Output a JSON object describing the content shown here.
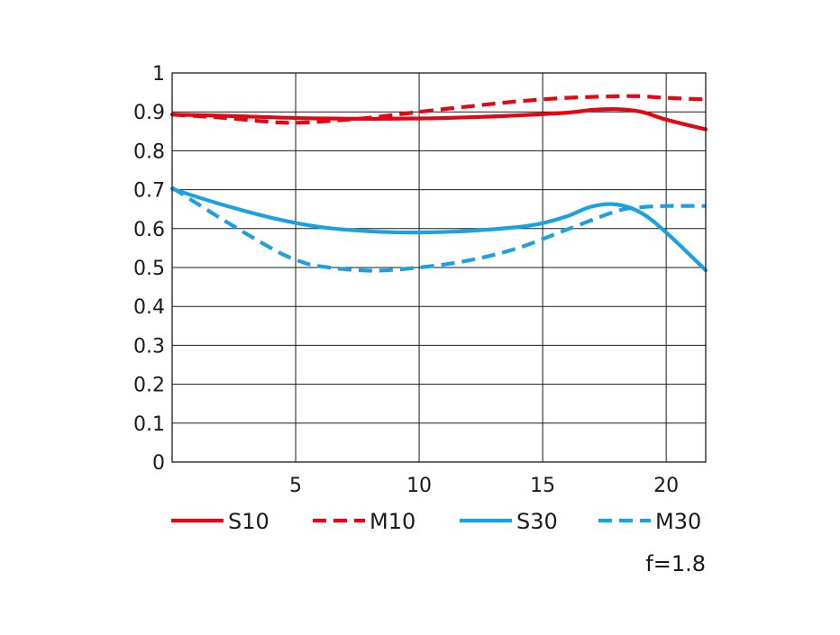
{
  "chart_data": {
    "type": "line",
    "title": "",
    "xlabel": "",
    "ylabel": "",
    "xlim": [
      0,
      21.6
    ],
    "ylim": [
      0,
      1
    ],
    "x_ticks": [
      "5",
      "10",
      "15",
      "20"
    ],
    "y_ticks": [
      "0",
      "0.1",
      "0.2",
      "0.3",
      "0.4",
      "0.5",
      "0.6",
      "0.7",
      "0.8",
      "0.9",
      "1"
    ],
    "grid": true,
    "legend_position": "bottom",
    "annotation": "f=1.8",
    "series": [
      {
        "name": "S10",
        "color": "#e30613",
        "dash": "solid",
        "x": [
          0,
          2,
          4,
          6,
          8,
          10,
          12,
          14,
          16,
          17,
          18,
          19,
          20,
          21.6
        ],
        "y": [
          0.893,
          0.89,
          0.886,
          0.883,
          0.882,
          0.883,
          0.886,
          0.891,
          0.898,
          0.905,
          0.907,
          0.9,
          0.88,
          0.855
        ]
      },
      {
        "name": "M10",
        "color": "#e30613",
        "dash": "dashed",
        "x": [
          0,
          2,
          4,
          5,
          6,
          8,
          10,
          12,
          14,
          16,
          18,
          19,
          20,
          21.6
        ],
        "y": [
          0.893,
          0.885,
          0.874,
          0.872,
          0.875,
          0.885,
          0.9,
          0.914,
          0.927,
          0.936,
          0.94,
          0.94,
          0.936,
          0.932
        ]
      },
      {
        "name": "S30",
        "color": "#1ba1e2",
        "dash": "solid",
        "x": [
          0,
          2,
          4,
          6,
          8,
          10,
          12,
          14,
          15,
          16,
          17,
          18,
          19,
          20,
          21.6
        ],
        "y": [
          0.702,
          0.662,
          0.628,
          0.604,
          0.593,
          0.59,
          0.594,
          0.604,
          0.614,
          0.632,
          0.657,
          0.662,
          0.64,
          0.59,
          0.493
        ]
      },
      {
        "name": "M30",
        "color": "#1ba1e2",
        "dash": "dashed",
        "x": [
          0,
          2,
          4,
          5,
          6,
          8,
          10,
          12,
          14,
          16,
          18,
          19,
          20,
          21.6
        ],
        "y": [
          0.705,
          0.625,
          0.55,
          0.52,
          0.503,
          0.492,
          0.5,
          0.518,
          0.55,
          0.598,
          0.645,
          0.655,
          0.658,
          0.658
        ]
      }
    ]
  }
}
